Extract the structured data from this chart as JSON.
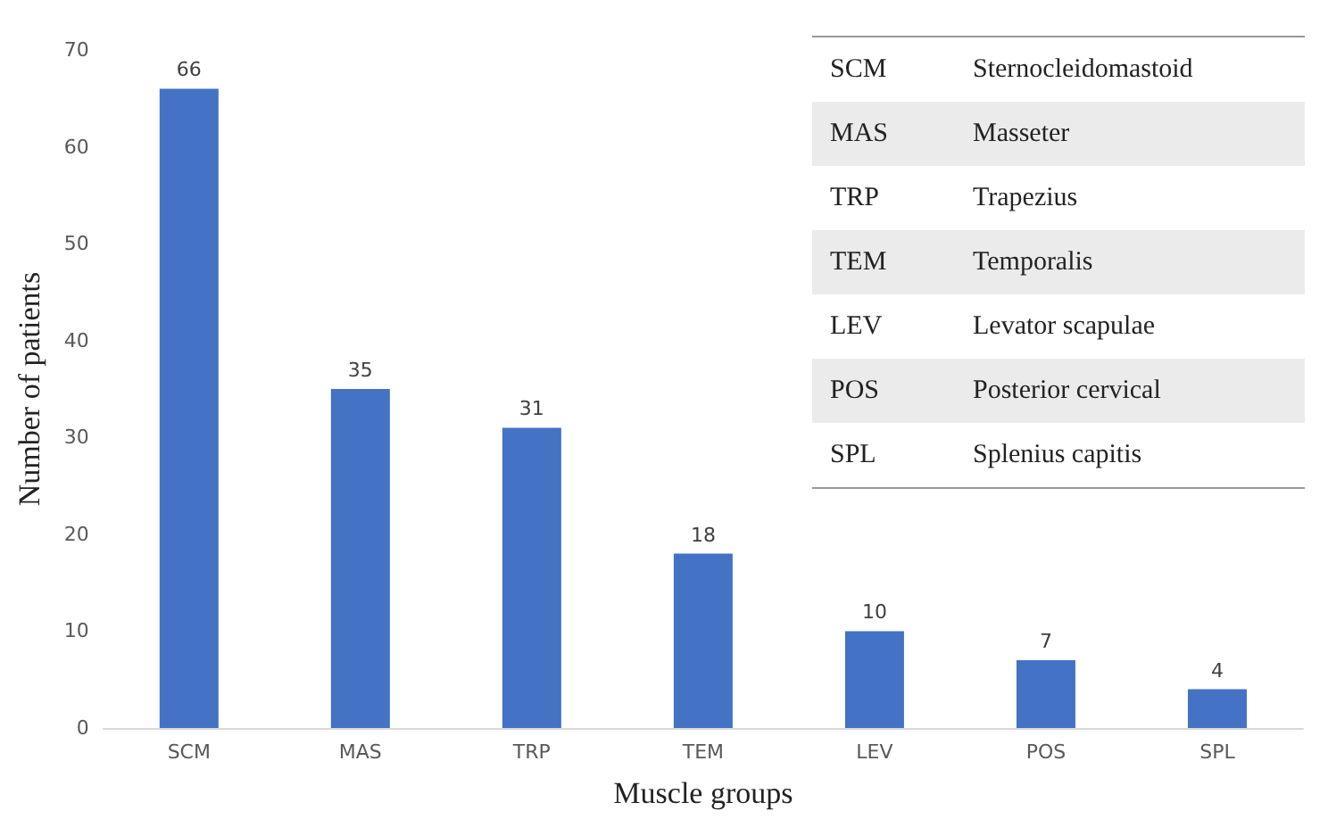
{
  "chart_data": {
    "type": "bar",
    "xlabel": "Muscle groups",
    "ylabel": "Number of patients",
    "categories": [
      "SCM",
      "MAS",
      "TRP",
      "TEM",
      "LEV",
      "POS",
      "SPL"
    ],
    "values": [
      66,
      35,
      31,
      18,
      10,
      7,
      4
    ],
    "color": "#4472c4",
    "data_labels": true,
    "ylim": [
      0,
      70
    ],
    "yticks": [
      0,
      10,
      20,
      30,
      40,
      50,
      60,
      70
    ],
    "grid": false,
    "annotations": [
      "SCM",
      "Sternocleidomastoid",
      "MAS",
      "Masseter",
      "TRP",
      "Trapezius",
      "TEM",
      "Temporalis",
      "LEV",
      "Levator scapulae",
      "POS",
      "Posterior cervical",
      "SPL",
      "Splenius capitis"
    ]
  }
}
